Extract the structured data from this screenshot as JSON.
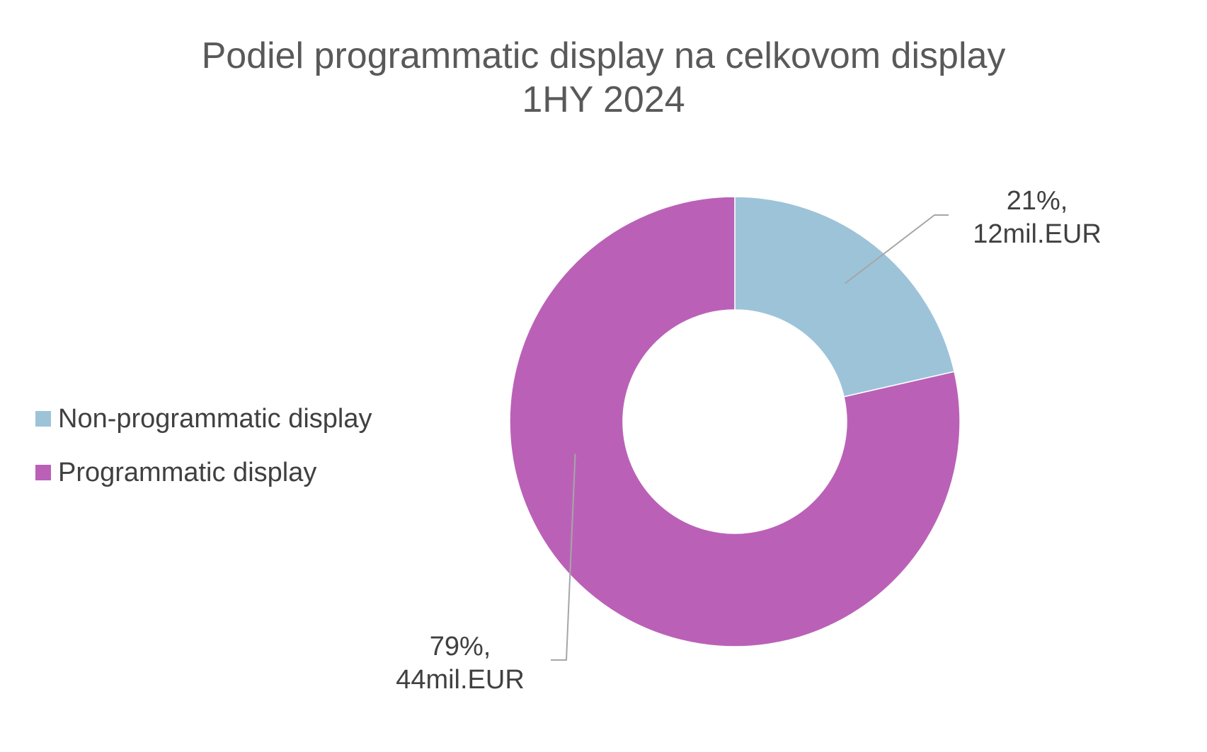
{
  "chart_data": {
    "type": "pie",
    "variant": "donut",
    "title": "Podiel programmatic display na celkovom display",
    "subtitle": "1HY 2024",
    "legend_position": "left",
    "categories": [
      "Non-programmatic display",
      "Programmatic display"
    ],
    "values": [
      12,
      44
    ],
    "percentages": [
      21,
      79
    ],
    "colors": [
      "#9DC3D9",
      "#BA61B7"
    ],
    "data_labels": [
      {
        "line1": "21%,",
        "line2": "12mil.EUR"
      },
      {
        "line1": "79%,",
        "line2": "44mil.EUR"
      }
    ]
  }
}
